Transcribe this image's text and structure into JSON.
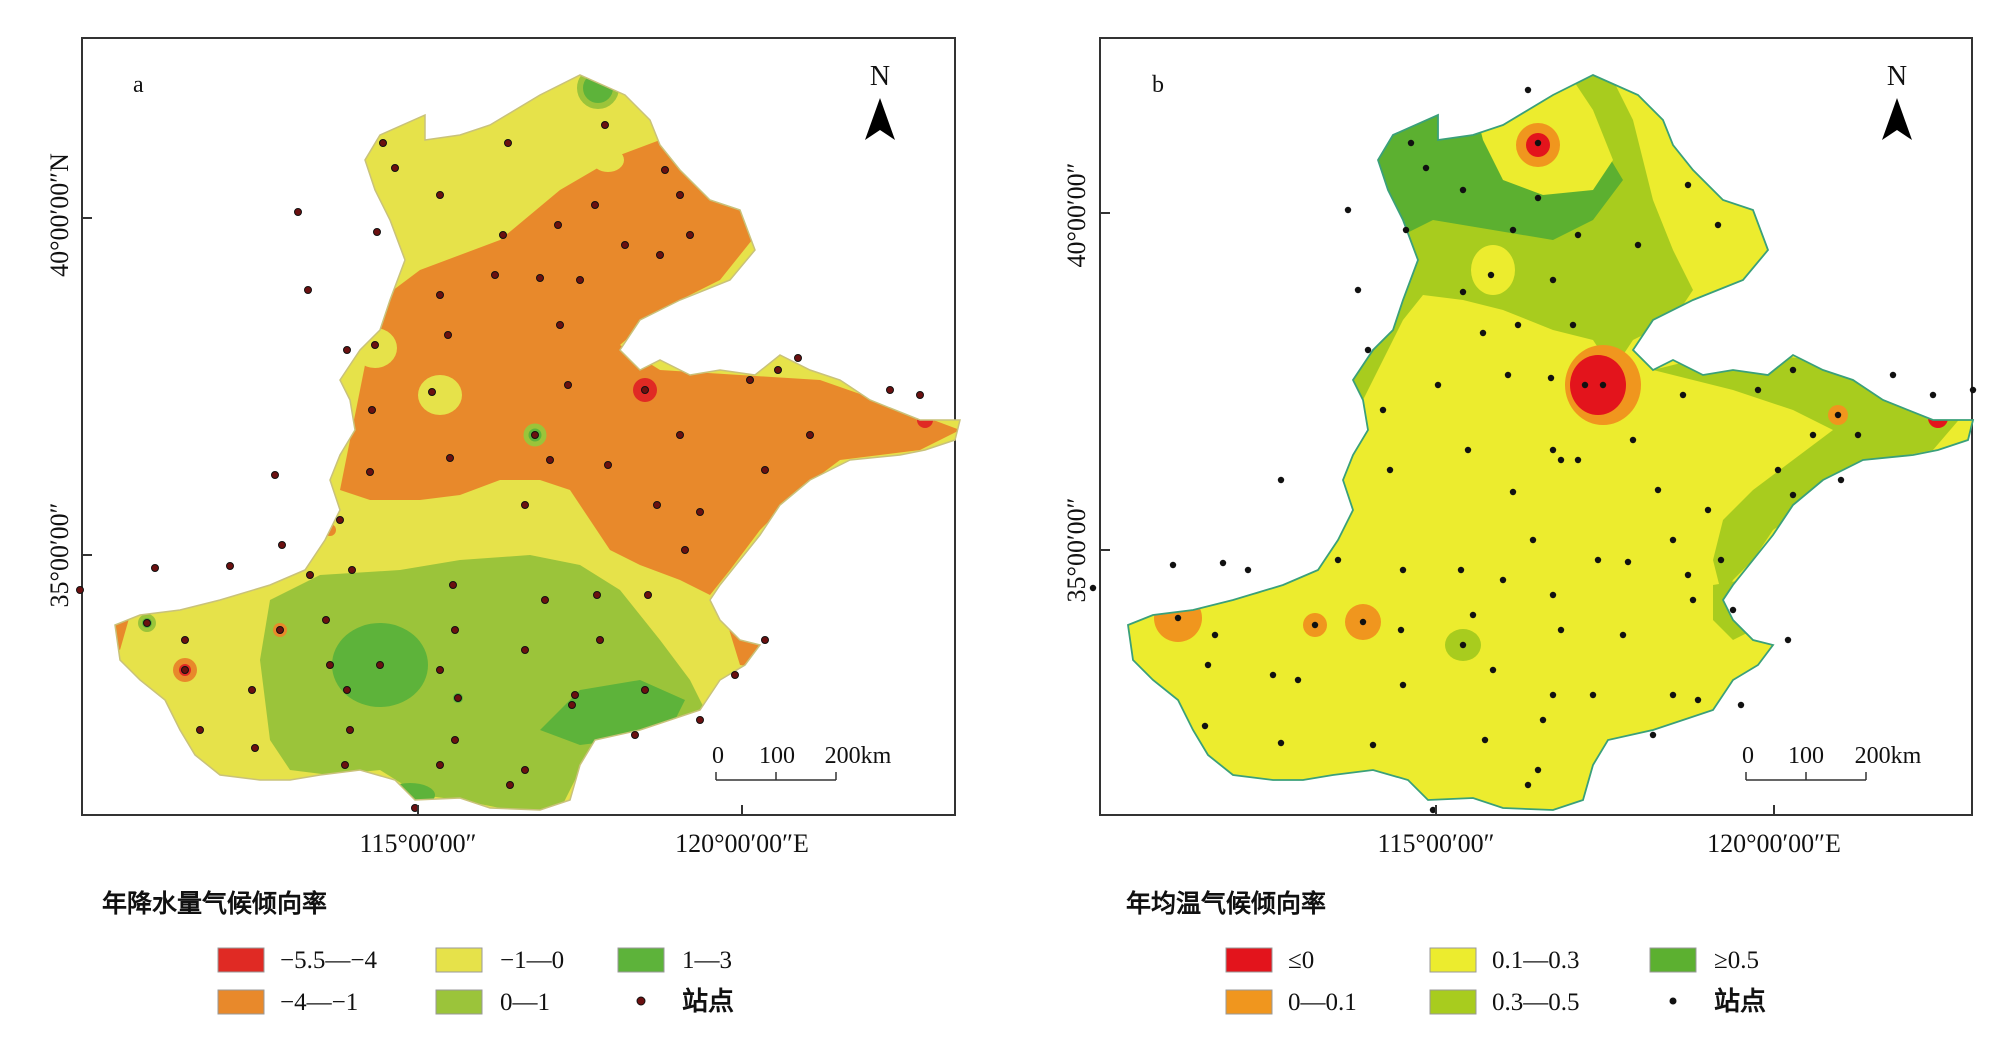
{
  "map_a": {
    "panel_label": "a",
    "north": "N",
    "lat_labels": [
      "40°00′00″N",
      "35°00′00″"
    ],
    "lon_labels": [
      "115°00′00″",
      "120°00′00″E"
    ],
    "scale": {
      "zero": "0",
      "mid": "100",
      "end": "200km"
    },
    "legend_title": "年降水量气候倾向率",
    "legend": [
      {
        "label": "−5.5—−4",
        "color": "#e02a24"
      },
      {
        "label": "−4—−1",
        "color": "#e8892b"
      },
      {
        "label": "−1—0",
        "color": "#e6e24a"
      },
      {
        "label": "0—1",
        "color": "#9bc43a"
      },
      {
        "label": "1—3",
        "color": "#5db33a"
      },
      {
        "label": "站点",
        "color": "#6b1010",
        "icon": "station-dot"
      }
    ]
  },
  "map_b": {
    "panel_label": "b",
    "north": "N",
    "lat_labels": [
      "40°00′00″",
      "35°00′00″"
    ],
    "lon_labels": [
      "115°00′00″",
      "120°00′00″E"
    ],
    "scale": {
      "zero": "0",
      "mid": "100",
      "end": "200km"
    },
    "legend_title": "年均温气候倾向率",
    "legend": [
      {
        "label": "≤0",
        "color": "#e3141c"
      },
      {
        "label": "0—0.1",
        "color": "#f0961e"
      },
      {
        "label": "0.1—0.3",
        "color": "#ecec2e"
      },
      {
        "label": "0.3—0.5",
        "color": "#a8cc1e"
      },
      {
        "label": "≥0.5",
        "color": "#5cb030"
      },
      {
        "label": "站点",
        "color": "#111111",
        "icon": "station-dot"
      }
    ]
  }
}
